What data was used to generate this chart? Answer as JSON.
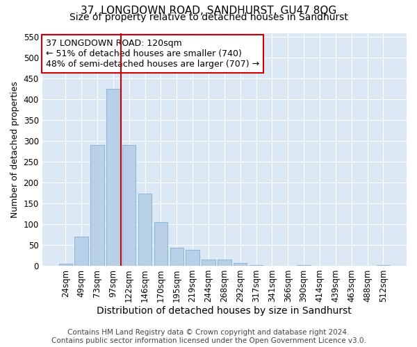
{
  "title": "37, LONGDOWN ROAD, SANDHURST, GU47 8QG",
  "subtitle": "Size of property relative to detached houses in Sandhurst",
  "xlabel": "Distribution of detached houses by size in Sandhurst",
  "ylabel": "Number of detached properties",
  "categories": [
    "24sqm",
    "49sqm",
    "73sqm",
    "97sqm",
    "122sqm",
    "146sqm",
    "170sqm",
    "195sqm",
    "219sqm",
    "244sqm",
    "268sqm",
    "292sqm",
    "317sqm",
    "341sqm",
    "366sqm",
    "390sqm",
    "414sqm",
    "439sqm",
    "463sqm",
    "488sqm",
    "512sqm"
  ],
  "values": [
    5,
    70,
    290,
    425,
    290,
    173,
    105,
    43,
    38,
    15,
    15,
    6,
    1,
    0,
    0,
    1,
    0,
    0,
    0,
    0,
    1
  ],
  "bar_color": "#b8d0e8",
  "bar_edge_color": "#90b8d8",
  "vline_x_index": 4,
  "vline_color": "#cc0000",
  "annotation_line1": "37 LONGDOWN ROAD: 120sqm",
  "annotation_line2": "← 51% of detached houses are smaller (740)",
  "annotation_line3": "48% of semi-detached houses are larger (707) →",
  "annotation_box_color": "#ffffff",
  "annotation_box_edge_color": "#cc0000",
  "ylim": [
    0,
    560
  ],
  "yticks": [
    0,
    50,
    100,
    150,
    200,
    250,
    300,
    350,
    400,
    450,
    500,
    550
  ],
  "figure_bg_color": "#ffffff",
  "plot_bg_color": "#dce9f5",
  "grid_color": "#ffffff",
  "footer_line1": "Contains HM Land Registry data © Crown copyright and database right 2024.",
  "footer_line2": "Contains public sector information licensed under the Open Government Licence v3.0.",
  "title_fontsize": 11,
  "subtitle_fontsize": 10,
  "xlabel_fontsize": 10,
  "ylabel_fontsize": 9,
  "tick_fontsize": 8.5,
  "annot_fontsize": 9,
  "footer_fontsize": 7.5
}
